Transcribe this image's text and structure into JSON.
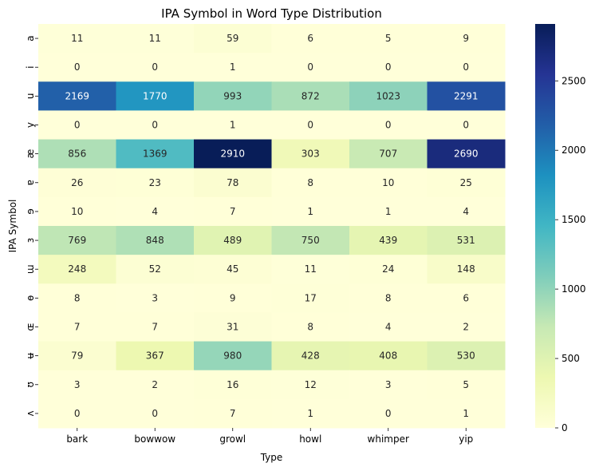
{
  "chart_data": {
    "type": "heatmap",
    "title": "IPA Symbol in Word Type Distribution",
    "xlabel": "Type",
    "ylabel": "IPA Symbol",
    "x_categories": [
      "bark",
      "bowwow",
      "growl",
      "howl",
      "whimper",
      "yip"
    ],
    "y_categories": [
      "a",
      "i",
      "u",
      "y",
      "æ",
      "ɐ",
      "ɘ",
      "ɜ",
      "ɯ",
      "ɵ",
      "ɶ",
      "ʉ",
      "ʊ",
      "ʌ"
    ],
    "values": [
      [
        11,
        11,
        59,
        6,
        5,
        9
      ],
      [
        0,
        0,
        1,
        0,
        0,
        0
      ],
      [
        2169,
        1770,
        993,
        872,
        1023,
        2291
      ],
      [
        0,
        0,
        1,
        0,
        0,
        0
      ],
      [
        856,
        1369,
        2910,
        303,
        707,
        2690
      ],
      [
        26,
        23,
        78,
        8,
        10,
        25
      ],
      [
        10,
        4,
        7,
        1,
        1,
        4
      ],
      [
        769,
        848,
        489,
        750,
        439,
        531
      ],
      [
        248,
        52,
        45,
        11,
        24,
        148
      ],
      [
        8,
        3,
        9,
        17,
        8,
        6
      ],
      [
        7,
        7,
        31,
        8,
        4,
        2
      ],
      [
        79,
        367,
        980,
        428,
        408,
        530
      ],
      [
        3,
        2,
        16,
        12,
        3,
        5
      ],
      [
        0,
        0,
        7,
        1,
        0,
        1
      ]
    ],
    "colormap": "YlGnBu",
    "vmin": 0,
    "vmax": 2910,
    "colorbar_ticks": [
      0,
      500,
      1000,
      1500,
      2000,
      2500
    ],
    "annotated": true,
    "grid": false
  }
}
